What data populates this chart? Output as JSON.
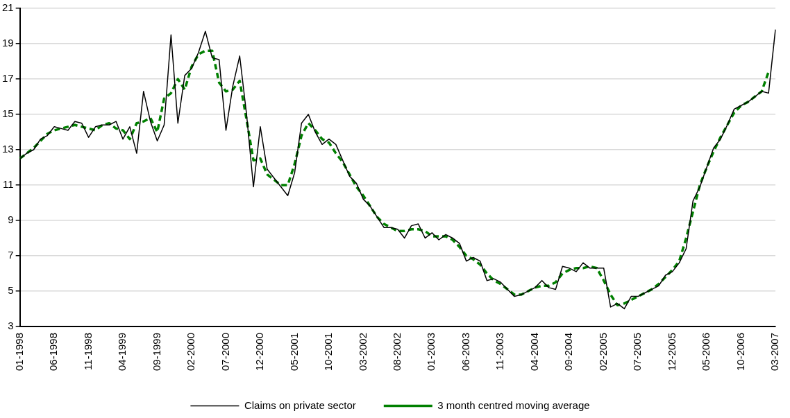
{
  "chart_data": {
    "type": "line",
    "categories": [
      "01-1998",
      null,
      null,
      null,
      null,
      "06-1998",
      null,
      null,
      null,
      null,
      "11-1998",
      null,
      null,
      null,
      null,
      "04-1999",
      null,
      null,
      null,
      null,
      "09-1999",
      null,
      null,
      null,
      null,
      "02-2000",
      null,
      null,
      null,
      null,
      "07-2000",
      null,
      null,
      null,
      null,
      "12-2000",
      null,
      null,
      null,
      null,
      "05-2001",
      null,
      null,
      null,
      null,
      "10-2001",
      null,
      null,
      null,
      null,
      "03-2002",
      null,
      null,
      null,
      null,
      "08-2002",
      null,
      null,
      null,
      null,
      "01-2003",
      null,
      null,
      null,
      null,
      "06-2003",
      null,
      null,
      null,
      null,
      "11-2003",
      null,
      null,
      null,
      null,
      "04-2004",
      null,
      null,
      null,
      null,
      "09-2004",
      null,
      null,
      null,
      null,
      "02-2005",
      null,
      null,
      null,
      null,
      "07-2005",
      null,
      null,
      null,
      null,
      "12-2005",
      null,
      null,
      null,
      null,
      "05-2006",
      null,
      null,
      null,
      null,
      "10-2006",
      null,
      null,
      null,
      null,
      "03-2007"
    ],
    "series": [
      {
        "name": "Claims on private sector",
        "color": "#000000",
        "line_style": "solid",
        "values": [
          12.5,
          12.8,
          13.0,
          13.6,
          13.8,
          14.3,
          14.2,
          14.1,
          14.6,
          14.5,
          13.7,
          14.3,
          14.4,
          14.4,
          14.6,
          13.6,
          14.3,
          12.8,
          16.3,
          14.6,
          13.5,
          14.4,
          19.5,
          14.5,
          17.2,
          17.6,
          18.5,
          19.7,
          18.2,
          18.1,
          14.1,
          16.6,
          18.3,
          15.0,
          10.9,
          14.3,
          11.9,
          11.4,
          10.9,
          10.4,
          11.7,
          14.5,
          15.0,
          14.0,
          13.3,
          13.6,
          13.3,
          12.4,
          11.5,
          11.1,
          10.2,
          9.8,
          9.2,
          8.6,
          8.6,
          8.5,
          8.0,
          8.7,
          8.8,
          8.0,
          8.3,
          7.9,
          8.2,
          8.0,
          7.7,
          6.7,
          6.9,
          6.7,
          5.6,
          5.7,
          5.5,
          5.1,
          4.7,
          4.8,
          5.0,
          5.2,
          5.6,
          5.2,
          5.1,
          6.4,
          6.3,
          6.1,
          6.6,
          6.3,
          6.3,
          6.3,
          4.1,
          4.3,
          4.0,
          4.7,
          4.7,
          4.9,
          5.1,
          5.3,
          5.9,
          6.1,
          6.6,
          7.4,
          10.1,
          10.9,
          12.0,
          13.1,
          13.6,
          14.4,
          15.3,
          15.5,
          15.7,
          16.0,
          16.3,
          16.2,
          19.8
        ]
      },
      {
        "name": "3 month centred moving average",
        "color": "#008000",
        "line_style": "dashed",
        "values": [
          12.5,
          12.8,
          13.1,
          13.5,
          13.9,
          14.1,
          14.2,
          14.3,
          14.4,
          14.3,
          14.2,
          14.1,
          14.4,
          14.5,
          14.2,
          14.1,
          13.6,
          14.5,
          14.6,
          14.8,
          14.0,
          15.9,
          16.2,
          17.0,
          16.4,
          17.7,
          18.4,
          18.6,
          18.6,
          16.8,
          16.3,
          16.4,
          16.9,
          14.7,
          12.4,
          12.5,
          11.6,
          11.3,
          11.0,
          11.0,
          12.2,
          13.8,
          14.5,
          14.1,
          13.6,
          13.4,
          12.8,
          12.3,
          11.6,
          10.9,
          10.4,
          9.8,
          9.2,
          8.8,
          8.6,
          8.4,
          8.4,
          8.5,
          8.5,
          8.4,
          8.1,
          8.1,
          8.1,
          7.9,
          7.5,
          7.0,
          6.8,
          6.5,
          6.0,
          5.6,
          5.4,
          5.1,
          4.8,
          4.8,
          5.0,
          5.2,
          5.3,
          5.3,
          5.5,
          6.0,
          6.2,
          6.3,
          6.3,
          6.4,
          6.3,
          5.6,
          4.8,
          4.2,
          4.3,
          4.5,
          4.7,
          4.9,
          5.1,
          5.4,
          5.8,
          6.2,
          6.7,
          8.0,
          9.5,
          11.0,
          12.0,
          12.9,
          13.7,
          14.4,
          15.1,
          15.5,
          15.7,
          16.0,
          16.3,
          17.4,
          null
        ]
      }
    ],
    "ylim": [
      3,
      21
    ],
    "yticks": [
      3,
      5,
      7,
      9,
      11,
      13,
      15,
      17,
      19,
      21
    ],
    "grid": true,
    "legend": "bottom",
    "marker": "none"
  }
}
